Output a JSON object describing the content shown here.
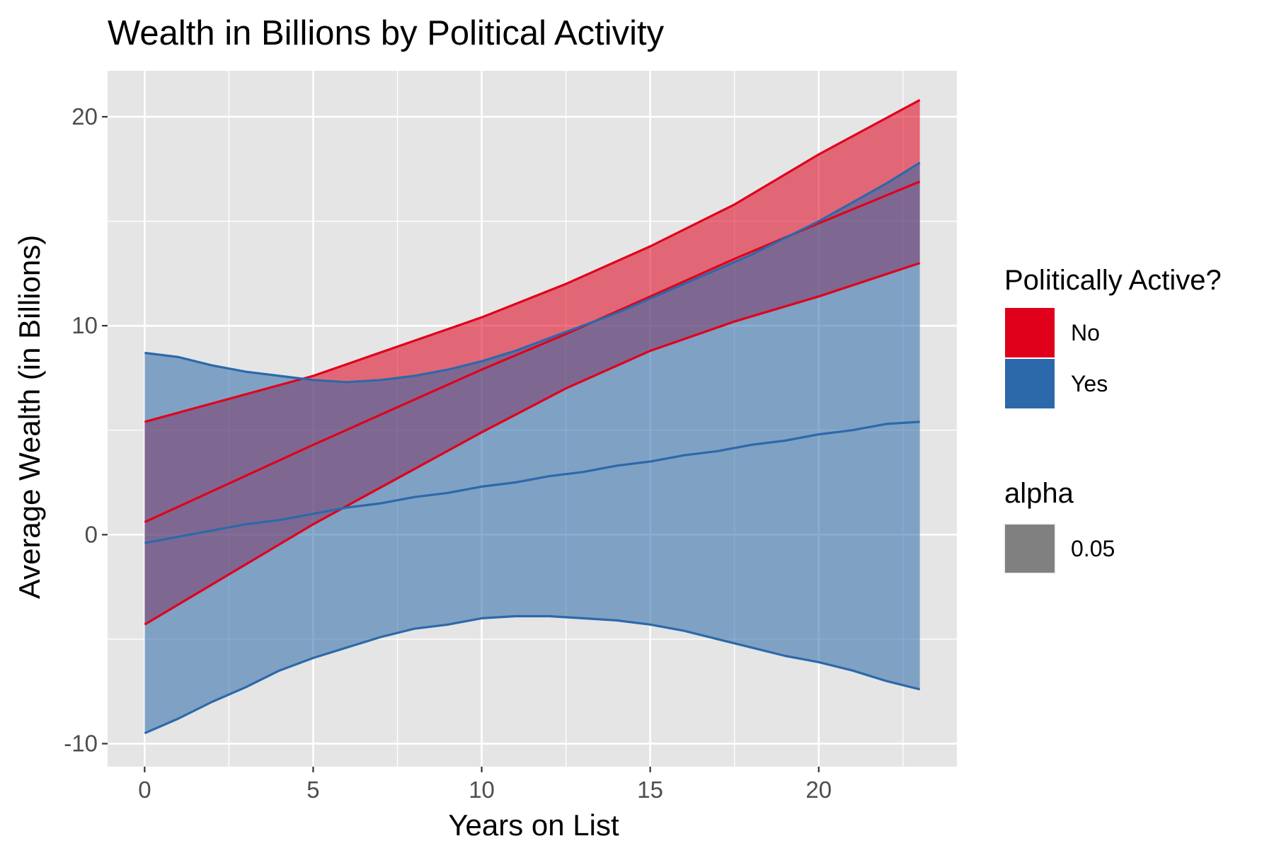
{
  "chart_data": {
    "type": "area",
    "title": "Wealth in Billions by Political Activity",
    "xlabel": "Years on List",
    "ylabel": "Average Wealth (in Billions)",
    "xlim": [
      -1.1,
      24.1
    ],
    "ylim": [
      -11.1,
      22.2
    ],
    "x_ticks": [
      0,
      5,
      10,
      15,
      20
    ],
    "y_ticks": [
      -10,
      0,
      10,
      20
    ],
    "x_tick_labels": [
      "0",
      "5",
      "10",
      "15",
      "20"
    ],
    "y_tick_labels": [
      "-10",
      "0",
      "10",
      "20"
    ],
    "grid": true,
    "legend_position": "right",
    "legend": {
      "fill_title": "Politically Active?",
      "fill_items": [
        {
          "label": "No",
          "color": "#E0001C"
        },
        {
          "label": "Yes",
          "color": "#2C69AA"
        }
      ],
      "alpha_title": "alpha",
      "alpha_items": [
        {
          "label": "0.05",
          "color": "#808080"
        }
      ]
    },
    "series": [
      {
        "name": "No",
        "color": "#E0001C",
        "fill": "#E0001C",
        "fill_opacity": 0.55,
        "x": [
          0,
          5,
          10,
          12.5,
          15,
          17.5,
          20,
          23
        ],
        "lower": [
          -4.3,
          0.5,
          4.9,
          7.0,
          8.8,
          10.2,
          11.4,
          13.0
        ],
        "mean": [
          0.6,
          4.3,
          7.9,
          9.6,
          11.4,
          13.2,
          14.9,
          16.9
        ],
        "upper": [
          5.4,
          7.6,
          10.4,
          12.0,
          13.8,
          15.8,
          18.2,
          20.8
        ]
      },
      {
        "name": "Yes",
        "color": "#2C69AA",
        "fill": "#2C69AA",
        "fill_opacity": 0.55,
        "x": [
          0,
          1,
          2,
          3,
          4,
          5,
          6,
          7,
          8,
          9,
          10,
          11,
          12,
          13,
          14,
          15,
          16,
          17,
          18,
          19,
          20,
          21,
          22,
          23
        ],
        "lower": [
          -9.5,
          -8.8,
          -8.0,
          -7.3,
          -6.5,
          -5.9,
          -5.4,
          -4.9,
          -4.5,
          -4.3,
          -4.0,
          -3.9,
          -3.9,
          -4.0,
          -4.1,
          -4.3,
          -4.6,
          -5.0,
          -5.4,
          -5.8,
          -6.1,
          -6.5,
          -7.0,
          -7.4
        ],
        "mean": [
          -0.4,
          -0.1,
          0.2,
          0.5,
          0.7,
          1.0,
          1.3,
          1.5,
          1.8,
          2.0,
          2.3,
          2.5,
          2.8,
          3.0,
          3.3,
          3.5,
          3.8,
          4.0,
          4.3,
          4.5,
          4.8,
          5.0,
          5.3,
          5.4
        ],
        "upper": [
          8.7,
          8.5,
          8.1,
          7.8,
          7.6,
          7.4,
          7.3,
          7.4,
          7.6,
          7.9,
          8.3,
          8.8,
          9.4,
          10.0,
          10.6,
          11.3,
          12.0,
          12.7,
          13.4,
          14.2,
          15.0,
          15.9,
          16.8,
          17.8
        ]
      }
    ]
  }
}
